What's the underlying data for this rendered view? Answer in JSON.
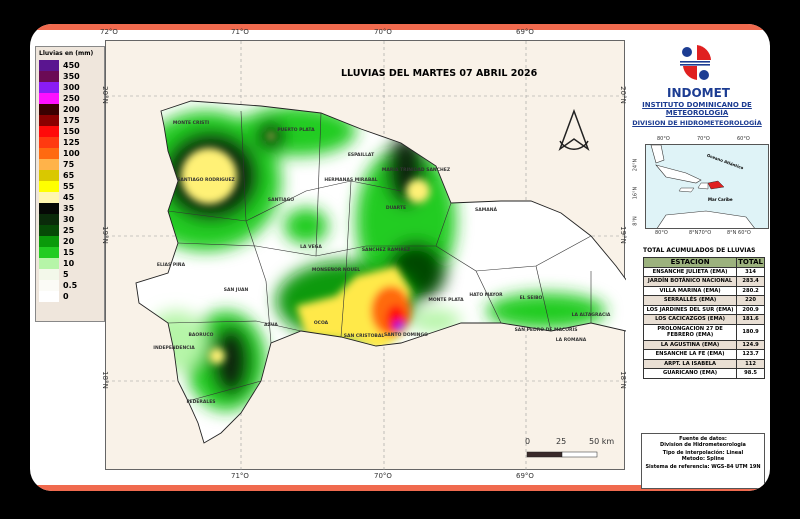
{
  "title": "LLUVIAS DEL MARTES 07 ABRIL 2026",
  "legend": {
    "title": "Lluvias en (mm)",
    "items": [
      {
        "label": "450",
        "color": "#5a1590"
      },
      {
        "label": "350",
        "color": "#6b0a55"
      },
      {
        "label": "300",
        "color": "#8a1cf5"
      },
      {
        "label": "250",
        "color": "#ff10ff"
      },
      {
        "label": "200",
        "color": "#3a0000"
      },
      {
        "label": "175",
        "color": "#8b0000"
      },
      {
        "label": "150",
        "color": "#ff0a0a"
      },
      {
        "label": "125",
        "color": "#ff3a10"
      },
      {
        "label": "100",
        "color": "#ff6a10"
      },
      {
        "label": "75",
        "color": "#ffb34a"
      },
      {
        "label": "65",
        "color": "#d9c800"
      },
      {
        "label": "55",
        "color": "#ffff00"
      },
      {
        "label": "45",
        "color": "#fff6b0"
      },
      {
        "label": "35",
        "color": "#050805"
      },
      {
        "label": "30",
        "color": "#0a2a0a"
      },
      {
        "label": "25",
        "color": "#064a06"
      },
      {
        "label": "20",
        "color": "#0a9a0a"
      },
      {
        "label": "15",
        "color": "#22cc22"
      },
      {
        "label": "10",
        "color": "#b6f5a8"
      },
      {
        "label": "5",
        "color": "#f3f8ea"
      },
      {
        "label": "0.5",
        "color": "#fbfbf6"
      },
      {
        "label": "0",
        "color": "#ffffff"
      }
    ]
  },
  "axes": {
    "lon": [
      "72°O",
      "71°O",
      "70°O",
      "69°O"
    ],
    "lat": [
      "20°N",
      "19°N",
      "18°N"
    ]
  },
  "provinces": [
    "MONTE CRISTI",
    "PUERTO PLATA",
    "SANTIAGO RODRIGUEZ",
    "SANTIAGO",
    "ESPAILLAT",
    "HERMANAS MIRABAL",
    "DUARTE",
    "SAMANÁ",
    "LA VEGA",
    "SANCHEZ RAMIREZ",
    "MONSEÑOR NOUEL",
    "ELIAS PIÑA",
    "SAN JUAN",
    "AZUA",
    "OCOA",
    "SAN CRISTOBAL",
    "SANTO DOMINGO",
    "MONTE PLATA",
    "HATO MAYOR",
    "EL SEIBO",
    "LA ALTAGRACIA",
    "SAN PEDRO DE MACORIS",
    "LA ROMANA",
    "BAORUCO",
    "INDEPENDENCIA",
    "FEDERALES",
    "MARIA TRINIDAD SANCHEZ"
  ],
  "scale": {
    "labels": [
      "0",
      "25",
      "50 km"
    ]
  },
  "org": {
    "name": "INDOMET",
    "line1": "INSTITUTO DOMINICANO DE METEOROLOGÍA",
    "line2": "DIVISION DE HIDROMETEOROLOGÍA"
  },
  "inset": {
    "lon": [
      "80°O",
      "70°O",
      "60°O"
    ],
    "lon_bottom": [
      "80°O",
      "8°N70°O",
      "8°N 60°O"
    ],
    "lat": [
      "24°N",
      "16°N",
      "8°N"
    ],
    "labels": [
      "Oceano Atlántico",
      "Mar Caribe"
    ]
  },
  "table": {
    "title": "TOTAL ACUMULADOS DE LLUVIAS",
    "headers": [
      "ESTACION",
      "TOTAL"
    ],
    "rows": [
      [
        "ENSANCHE JULIETA (EMA)",
        "314"
      ],
      [
        "JARDÍN BOTÁNICO NACIONAL",
        "283.4"
      ],
      [
        "VILLA MARINA (EMA)",
        "280.2"
      ],
      [
        "SERRALLÉS (EMA)",
        "220"
      ],
      [
        "LOS JARDINES DEL SUR (EMA)",
        "200.9"
      ],
      [
        "LOS CACICAZGOS (EMA)",
        "181.6"
      ],
      [
        "PROLONGACION 27 DE FEBRERO (EMA)",
        "180.9"
      ],
      [
        "LA AGUSTINA (EMA)",
        "124.9"
      ],
      [
        "ENSANCHE LA FE (EMA)",
        "123.7"
      ],
      [
        "ARPT. LA ISABELA",
        "112"
      ],
      [
        "GUARICANO (EMA)",
        "98.5"
      ]
    ]
  },
  "info": {
    "source_label": "Fuente de datos:",
    "source": "Division de Hidrometeorologia",
    "interp": "Tipo de interpolación: Lineal",
    "method": "Metodo: Spline",
    "ref": "Sistema de referencia: WGS-84 UTM 19N"
  }
}
